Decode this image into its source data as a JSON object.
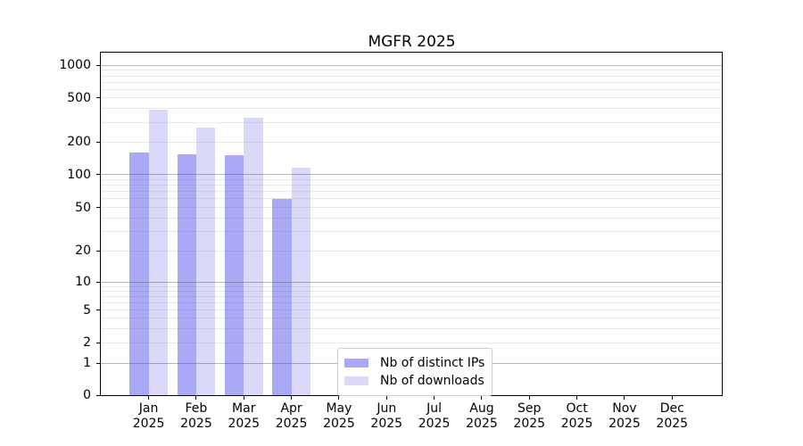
{
  "chart_data": {
    "type": "bar",
    "title": "MGFR 2025",
    "categories": [
      "Jan 2025",
      "Feb 2025",
      "Mar 2025",
      "Apr 2025",
      "May 2025",
      "Jun 2025",
      "Jul 2025",
      "Aug 2025",
      "Sep 2025",
      "Oct 2025",
      "Nov 2025",
      "Dec 2025"
    ],
    "xticks": [
      {
        "m": "Jan",
        "y": "2025"
      },
      {
        "m": "Feb",
        "y": "2025"
      },
      {
        "m": "Mar",
        "y": "2025"
      },
      {
        "m": "Apr",
        "y": "2025"
      },
      {
        "m": "May",
        "y": "2025"
      },
      {
        "m": "Jun",
        "y": "2025"
      },
      {
        "m": "Jul",
        "y": "2025"
      },
      {
        "m": "Aug",
        "y": "2025"
      },
      {
        "m": "Sep",
        "y": "2025"
      },
      {
        "m": "Oct",
        "y": "2025"
      },
      {
        "m": "Nov",
        "y": "2025"
      },
      {
        "m": "Dec",
        "y": "2025"
      }
    ],
    "series": [
      {
        "name": "Nb of distinct IPs",
        "color": "#a9a9f6",
        "values": [
          160,
          155,
          150,
          60,
          0,
          0,
          0,
          0,
          0,
          0,
          0,
          0
        ]
      },
      {
        "name": "Nb of downloads",
        "color": "#dadaf8",
        "values": [
          390,
          270,
          330,
          115,
          0,
          0,
          0,
          0,
          0,
          0,
          0,
          0
        ]
      }
    ],
    "xlabel": "",
    "ylabel": "",
    "yscale": "symlog (log above ~1, linear to 0 at bottom)",
    "yticks": [
      1000,
      500,
      200,
      100,
      50,
      20,
      10,
      5,
      2,
      1,
      0
    ],
    "ylim": [
      0,
      1310
    ],
    "grid": "horizontal major lines at powers of 10, minor lines at 2-9 per decade, drawn over bars",
    "legend_position": "inside axes, lower center-left",
    "background_color": "#ffffff",
    "spine_color": "#000000"
  },
  "legend": {
    "items": [
      {
        "label": "Nb of distinct IPs",
        "color": "#a9a9f6"
      },
      {
        "label": "Nb of downloads",
        "color": "#dadaf8"
      }
    ]
  }
}
